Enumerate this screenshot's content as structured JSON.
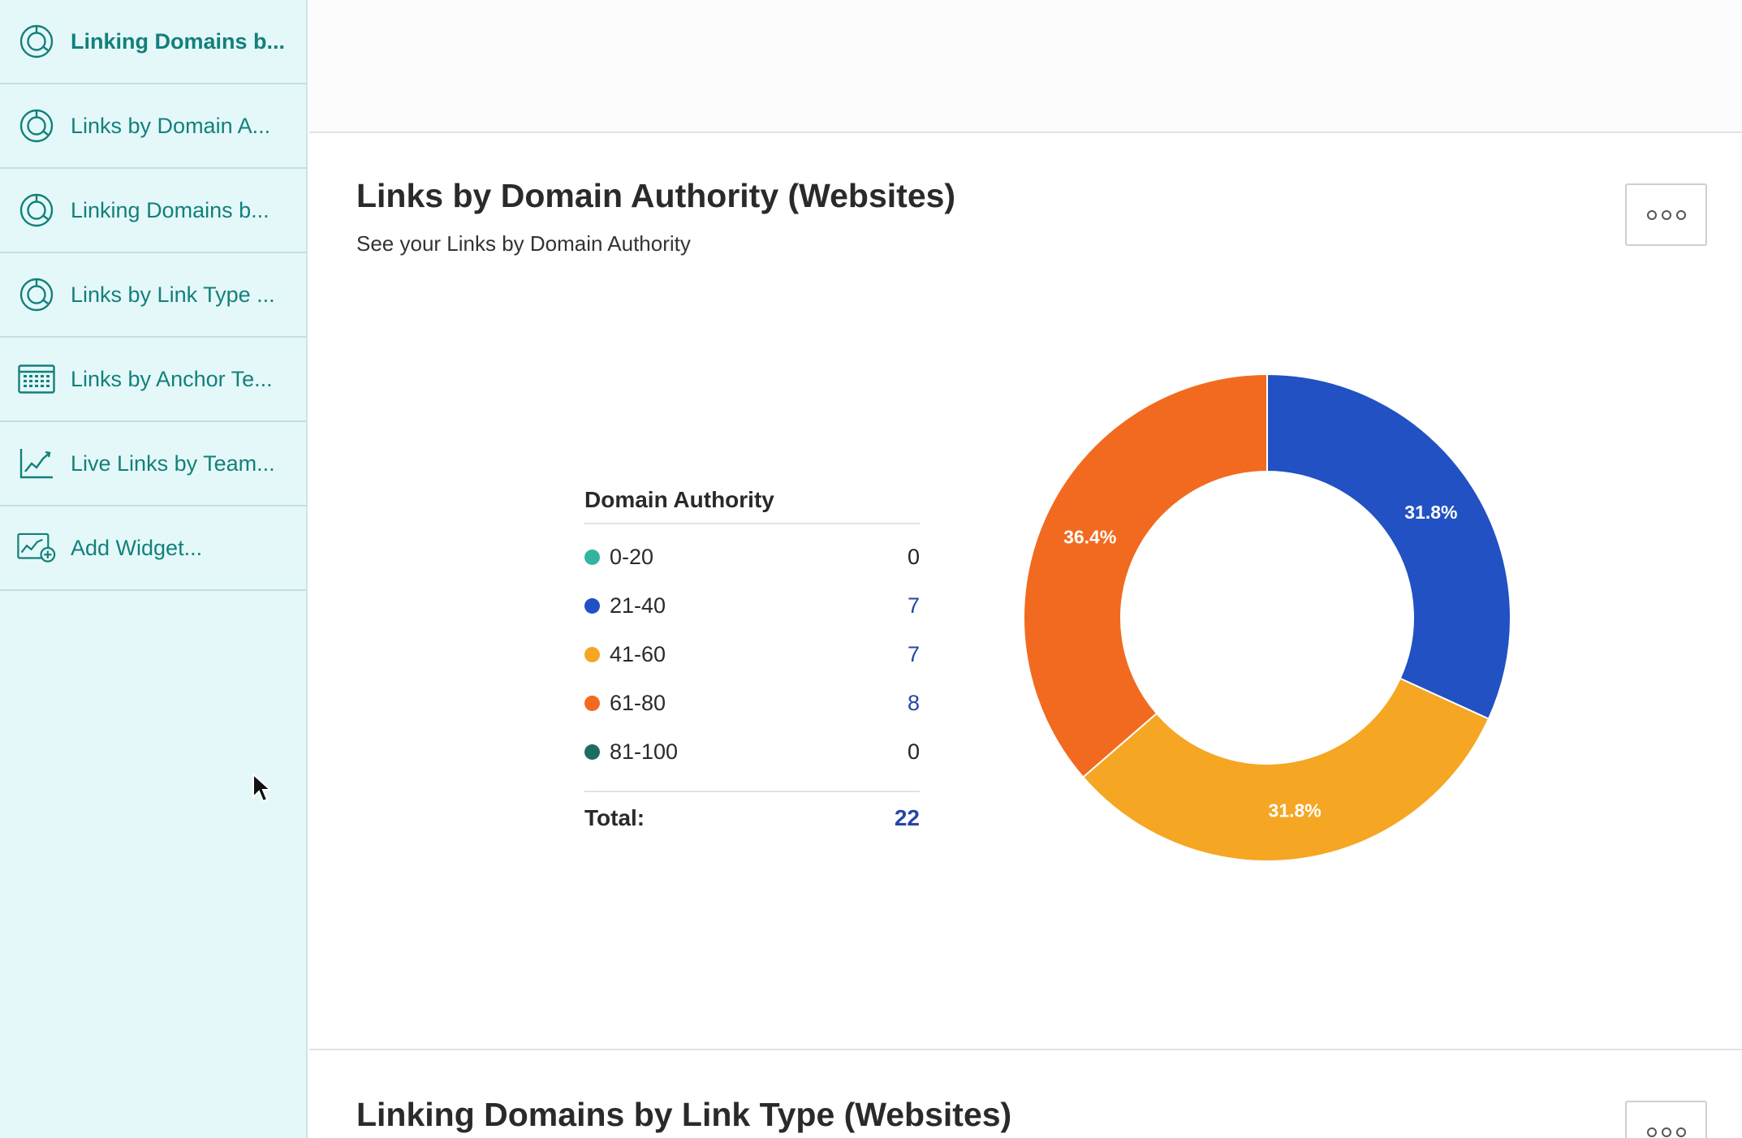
{
  "sidebar": {
    "items": [
      {
        "label": "Linking Domains b...",
        "icon": "donut-chart-icon",
        "active": true
      },
      {
        "label": "Links by Domain A...",
        "icon": "donut-chart-icon"
      },
      {
        "label": "Linking Domains b...",
        "icon": "donut-chart-icon"
      },
      {
        "label": "Links by Link Type ...",
        "icon": "donut-chart-icon"
      },
      {
        "label": "Links by Anchor Te...",
        "icon": "table-icon"
      },
      {
        "label": "Live Links by Team...",
        "icon": "line-chart-icon"
      },
      {
        "label": "Add Widget...",
        "icon": "add-widget-icon"
      }
    ],
    "accent": "#13807a",
    "background": "#e4f8fa"
  },
  "widget": {
    "title": "Links by Domain Authority (Websites)",
    "subtitle": "See your Links by Domain Authority",
    "more_icon": "more-options-icon",
    "legend": {
      "heading": "Domain Authority",
      "rows": [
        {
          "range": "0-20",
          "value": "0",
          "color": "#35b3a1"
        },
        {
          "range": "21-40",
          "value": "7",
          "color": "#2151c3"
        },
        {
          "range": "41-60",
          "value": "7",
          "color": "#f5a623"
        },
        {
          "range": "61-80",
          "value": "8",
          "color": "#f26a1f"
        },
        {
          "range": "81-100",
          "value": "0",
          "color": "#1b6d63"
        }
      ],
      "total_label": "Total:",
      "total_value": "22"
    }
  },
  "chart_data": {
    "type": "pie",
    "donut": true,
    "title": "",
    "categories": [
      "0-20",
      "21-40",
      "41-60",
      "61-80",
      "81-100"
    ],
    "values": [
      0,
      7,
      7,
      8,
      0
    ],
    "percent_labels": [
      "",
      "31.8%",
      "31.8%",
      "36.4%",
      ""
    ],
    "colors": [
      "#35b3a1",
      "#2151c3",
      "#f5a623",
      "#f26a1f",
      "#1b6d63"
    ],
    "start_angle": "top, clockwise"
  },
  "next_widget": {
    "title": "Linking Domains by Link Type (Websites)"
  }
}
